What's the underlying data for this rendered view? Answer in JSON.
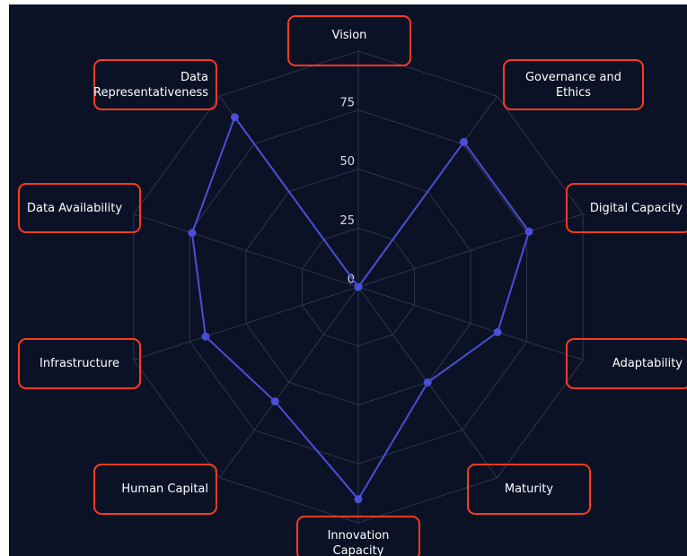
{
  "chart_data": {
    "type": "radar",
    "categories": [
      "Vision",
      "Governance and Ethics",
      "Digital Capacity",
      "Adaptability",
      "Maturity",
      "Innovation Capacity",
      "Human Capital",
      "Infrastructure",
      "Data Availability",
      "Data Representativeness"
    ],
    "values": [
      0,
      76,
      76,
      62,
      50,
      90,
      60,
      68,
      74,
      89
    ],
    "color": "#4a4fd6",
    "ylim": [
      0,
      100
    ],
    "yticks": [
      0,
      25,
      50,
      75
    ],
    "grid": true
  }
}
